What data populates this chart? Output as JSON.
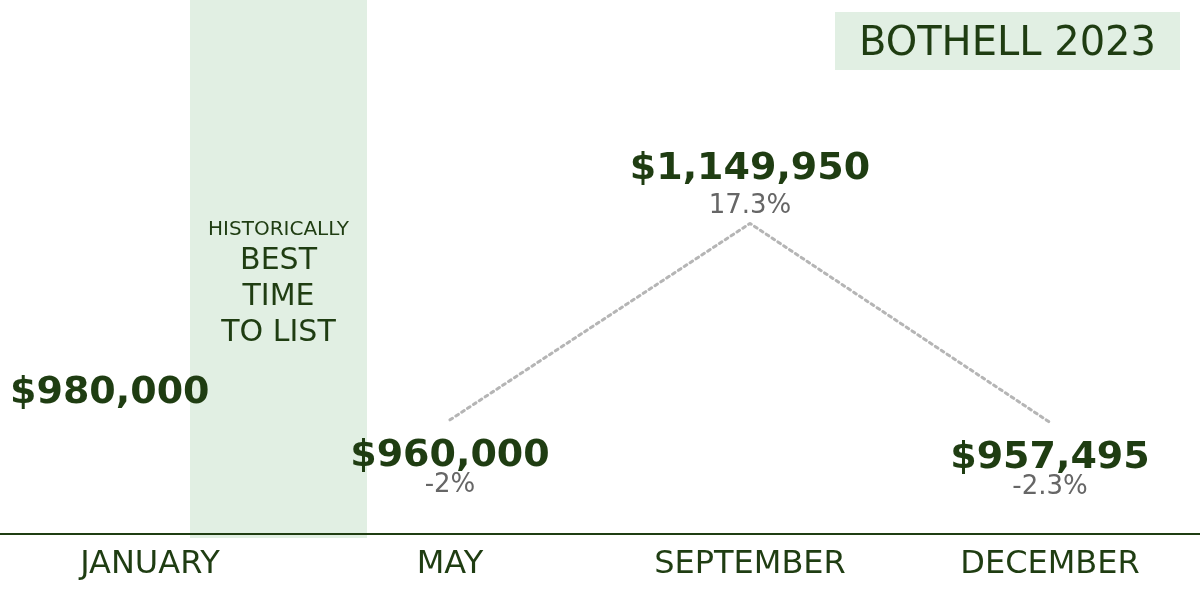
{
  "chart_data": {
    "type": "line",
    "title": "BOTHELL 2023",
    "categories": [
      "JANUARY",
      "MAY",
      "SEPTEMBER",
      "DECEMBER"
    ],
    "series": [
      {
        "marker": "none",
        "line_style": "dotted",
        "color": "#b5b5b5",
        "values": [
          null,
          960000,
          1149950,
          957495
        ],
        "value_labels": [
          null,
          "$960,000",
          "$1,149,950",
          "$957,495"
        ]
      }
    ],
    "tick_labels": "x",
    "grid": false,
    "legend": false,
    "annotations": [
      "HISTORICALLY\nBEST\nTIME\nTO LIST",
      "$980,000",
      {
        "text": "-2%",
        "x": "MAY",
        "y": 960000
      },
      {
        "text": "17.3%",
        "x": "SEPTEMBER",
        "y": 1149950
      },
      {
        "text": "-2.3%",
        "x": "DECEMBER",
        "y": 957495
      }
    ]
  }
}
